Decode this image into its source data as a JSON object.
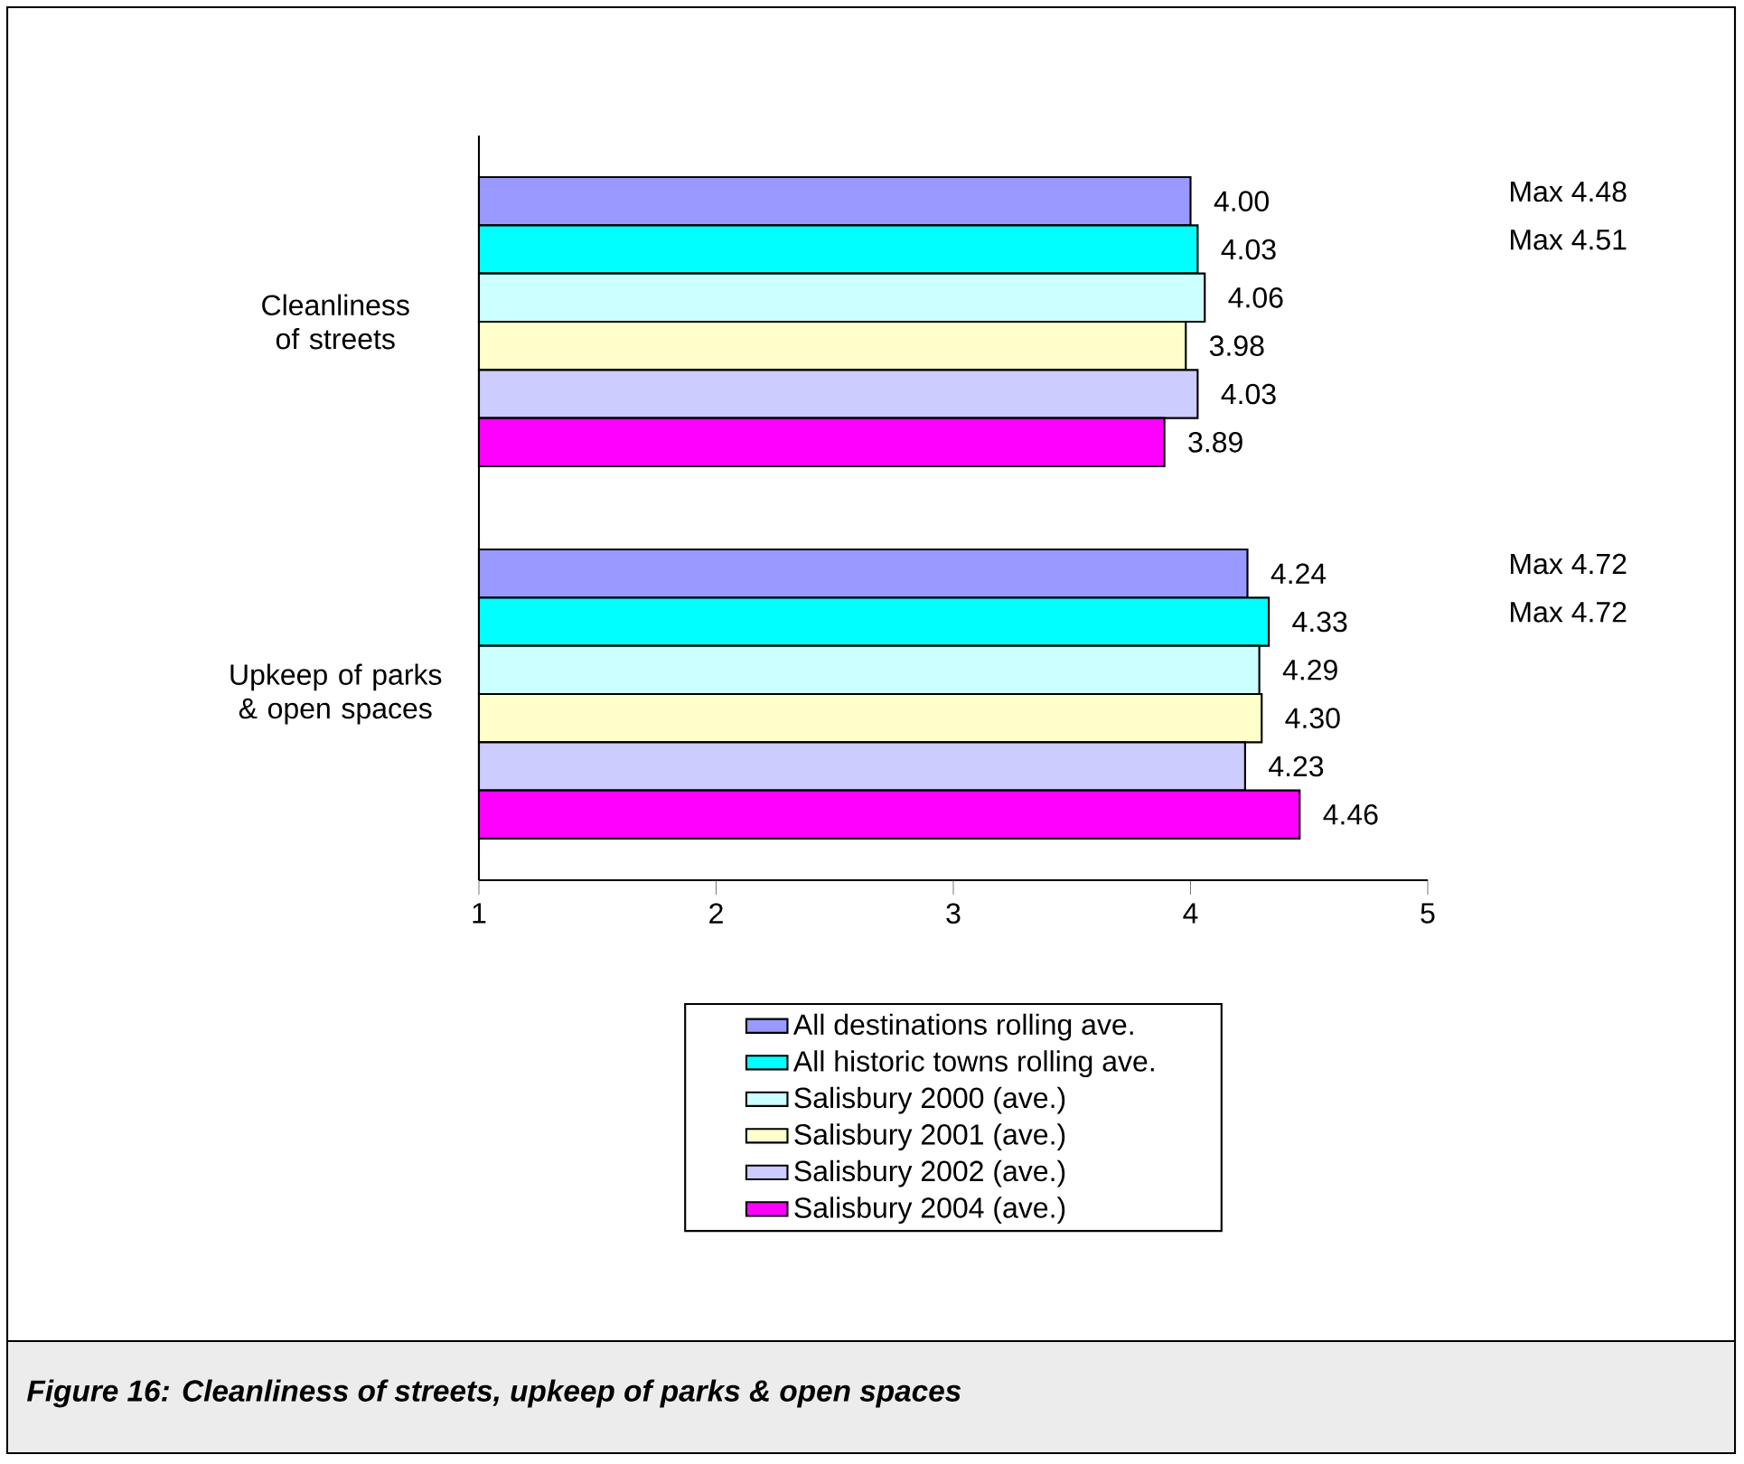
{
  "chart_data": {
    "type": "bar",
    "orientation": "horizontal",
    "title": "Figure 16: Cleanliness of streets, upkeep of parks & open spaces",
    "categories": [
      "Cleanliness of streets",
      "Upkeep of parks & open spaces"
    ],
    "series": [
      {
        "name": "All destinations rolling ave.",
        "color": "#9999ff",
        "values": [
          4.0,
          4.24
        ],
        "value_labels": [
          "4.00",
          "4.24"
        ]
      },
      {
        "name": "All historic towns rolling ave.",
        "color": "#00ffff",
        "values": [
          4.03,
          4.33
        ],
        "value_labels": [
          "4.03",
          "4.33"
        ]
      },
      {
        "name": "Salisbury 2000 (ave.)",
        "color": "#ccffff",
        "values": [
          4.06,
          4.29
        ],
        "value_labels": [
          "4.06",
          "4.29"
        ]
      },
      {
        "name": "Salisbury 2001 (ave.)",
        "color": "#ffffcc",
        "values": [
          3.98,
          4.3
        ],
        "value_labels": [
          "3.98",
          "4.30"
        ]
      },
      {
        "name": "Salisbury 2002 (ave.)",
        "color": "#ccccff",
        "values": [
          4.03,
          4.23
        ],
        "value_labels": [
          "4.03",
          "4.23"
        ]
      },
      {
        "name": "Salisbury 2004 (ave.)",
        "color": "#ff00ff",
        "values": [
          3.89,
          4.46
        ],
        "value_labels": [
          "3.89",
          "4.46"
        ]
      }
    ],
    "xlim": [
      1,
      5
    ],
    "xticks": [
      1,
      2,
      3,
      4,
      5
    ],
    "annotations": [
      "Max 4.48",
      "Max 4.51",
      "Max 4.72",
      "Max 4.72"
    ],
    "legend": "bottom"
  }
}
